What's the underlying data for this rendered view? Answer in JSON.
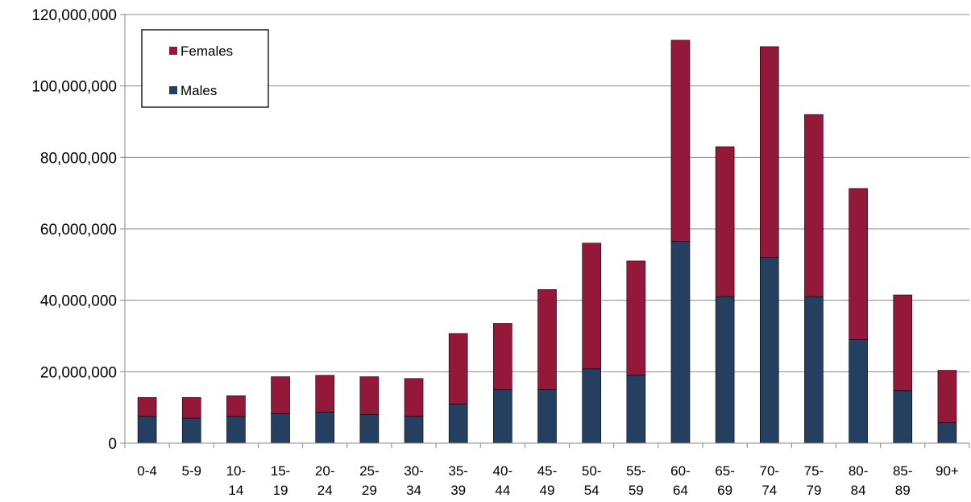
{
  "chart_data": {
    "type": "bar",
    "stacked": true,
    "categories": [
      [
        "0-4"
      ],
      [
        "5-9"
      ],
      [
        "10-",
        "14"
      ],
      [
        "15-",
        "19"
      ],
      [
        "20-",
        "24"
      ],
      [
        "25-",
        "29"
      ],
      [
        "30-",
        "34"
      ],
      [
        "35-",
        "39"
      ],
      [
        "40-",
        "44"
      ],
      [
        "45-",
        "49"
      ],
      [
        "50-",
        "54"
      ],
      [
        "55-",
        "59"
      ],
      [
        "60-",
        "64"
      ],
      [
        "65-",
        "69"
      ],
      [
        "70-",
        "74"
      ],
      [
        "75-",
        "79"
      ],
      [
        "80-",
        "84"
      ],
      [
        "85-",
        "89"
      ],
      [
        "90+"
      ]
    ],
    "series": [
      {
        "name": "Males",
        "color": "#243f60",
        "values": [
          7500000,
          7000000,
          7500000,
          8300000,
          8700000,
          8000000,
          7500000,
          11000000,
          15000000,
          15000000,
          20800000,
          19000000,
          56500000,
          41000000,
          52000000,
          41000000,
          29000000,
          14700000,
          5700000
        ]
      },
      {
        "name": "Females",
        "color": "#941839",
        "values": [
          5300000,
          5800000,
          5800000,
          10300000,
          10300000,
          10600000,
          10600000,
          19700000,
          18500000,
          28000000,
          35200000,
          32000000,
          56300000,
          42000000,
          59000000,
          51000000,
          42300000,
          26800000,
          14700000
        ]
      }
    ],
    "y_ticks": [
      "0",
      "20,000,000",
      "40,000,000",
      "60,000,000",
      "80,000,000",
      "100,000,000",
      "120,000,000"
    ],
    "ylim": [
      0,
      120000000
    ],
    "grid": true,
    "legend": {
      "position": "top-left",
      "entries": [
        "Females",
        "Males"
      ]
    }
  }
}
